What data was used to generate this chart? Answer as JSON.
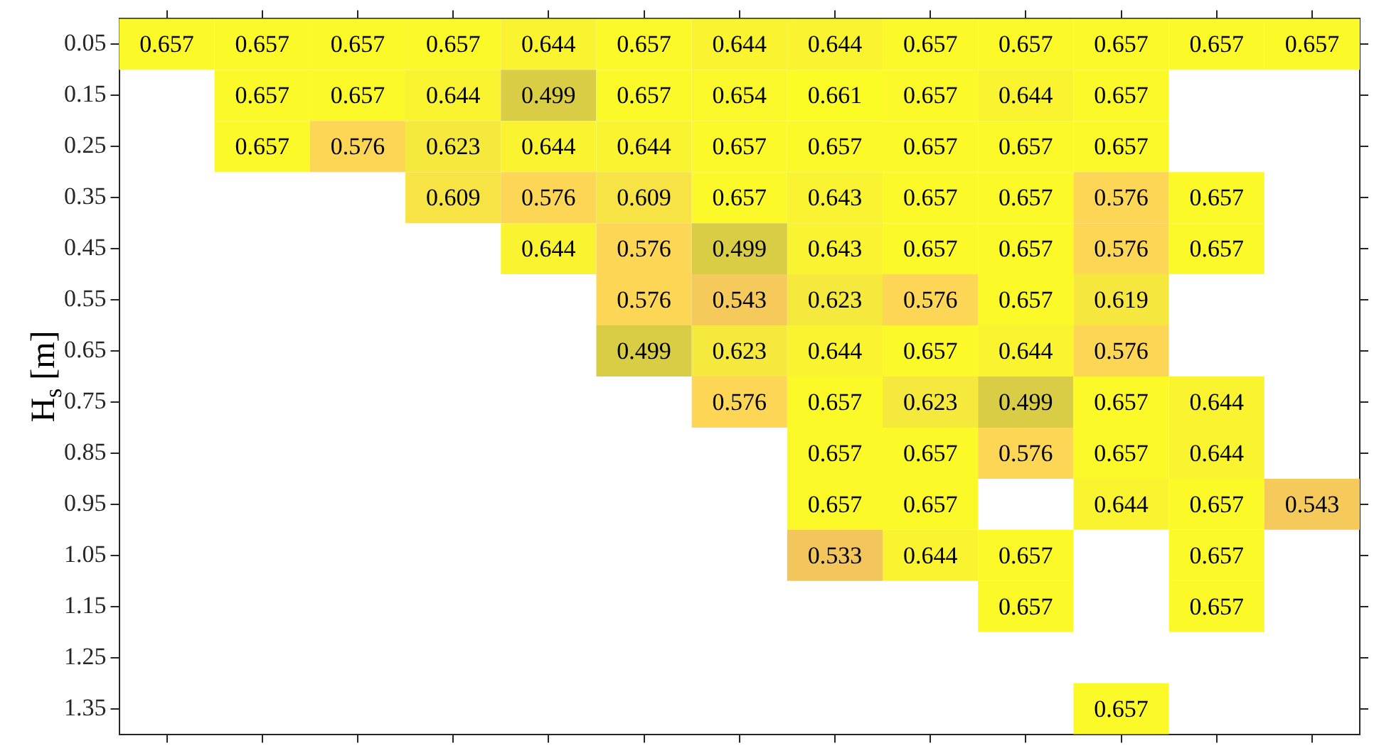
{
  "chart_data": {
    "type": "heatmap",
    "ylabel": "H$_{s}$ [m]",
    "categories": [
      null,
      null,
      null,
      null,
      null,
      null,
      null,
      null,
      null,
      null,
      null,
      null,
      null
    ],
    "y_categories": [
      "0.05",
      "0.15",
      "0.25",
      "0.35",
      "0.45",
      "0.55",
      "0.65",
      "0.75",
      "0.85",
      "0.95",
      "1.05",
      "1.15",
      "1.25",
      "1.35"
    ],
    "cells": [
      [
        0.657,
        0.657,
        0.657,
        0.657,
        0.644,
        0.657,
        0.644,
        0.644,
        0.657,
        0.657,
        0.657,
        0.657,
        0.657
      ],
      [
        null,
        0.657,
        0.657,
        0.644,
        0.499,
        0.657,
        0.654,
        0.661,
        0.657,
        0.644,
        0.657,
        null,
        null
      ],
      [
        null,
        0.657,
        0.576,
        0.623,
        0.644,
        0.644,
        0.657,
        0.657,
        0.657,
        0.657,
        0.657,
        null,
        null
      ],
      [
        null,
        null,
        null,
        0.609,
        0.576,
        0.609,
        0.657,
        0.643,
        0.657,
        0.657,
        0.576,
        0.657,
        null
      ],
      [
        null,
        null,
        null,
        null,
        0.644,
        0.576,
        0.499,
        0.643,
        0.657,
        0.657,
        0.576,
        0.657,
        null
      ],
      [
        null,
        null,
        null,
        null,
        null,
        0.576,
        0.543,
        0.623,
        0.576,
        0.657,
        0.619,
        null,
        null
      ],
      [
        null,
        null,
        null,
        null,
        null,
        0.499,
        0.623,
        0.644,
        0.657,
        0.644,
        0.576,
        null,
        null
      ],
      [
        null,
        null,
        null,
        null,
        null,
        null,
        0.576,
        0.657,
        0.623,
        0.499,
        0.657,
        0.644,
        null
      ],
      [
        null,
        null,
        null,
        null,
        null,
        null,
        null,
        0.657,
        0.657,
        0.576,
        0.657,
        0.644,
        null
      ],
      [
        null,
        null,
        null,
        null,
        null,
        null,
        null,
        0.657,
        0.657,
        null,
        0.644,
        0.657,
        0.543
      ],
      [
        null,
        null,
        null,
        null,
        null,
        null,
        null,
        0.533,
        0.644,
        0.657,
        null,
        0.657,
        null
      ],
      [
        null,
        null,
        null,
        null,
        null,
        null,
        null,
        null,
        null,
        0.657,
        null,
        0.657,
        null
      ],
      [
        null,
        null,
        null,
        null,
        null,
        null,
        null,
        null,
        null,
        null,
        null,
        null,
        null
      ],
      [
        null,
        null,
        null,
        null,
        null,
        null,
        null,
        null,
        null,
        null,
        0.657,
        null,
        null
      ]
    ],
    "data_labels": true,
    "tick_labels": "y"
  }
}
